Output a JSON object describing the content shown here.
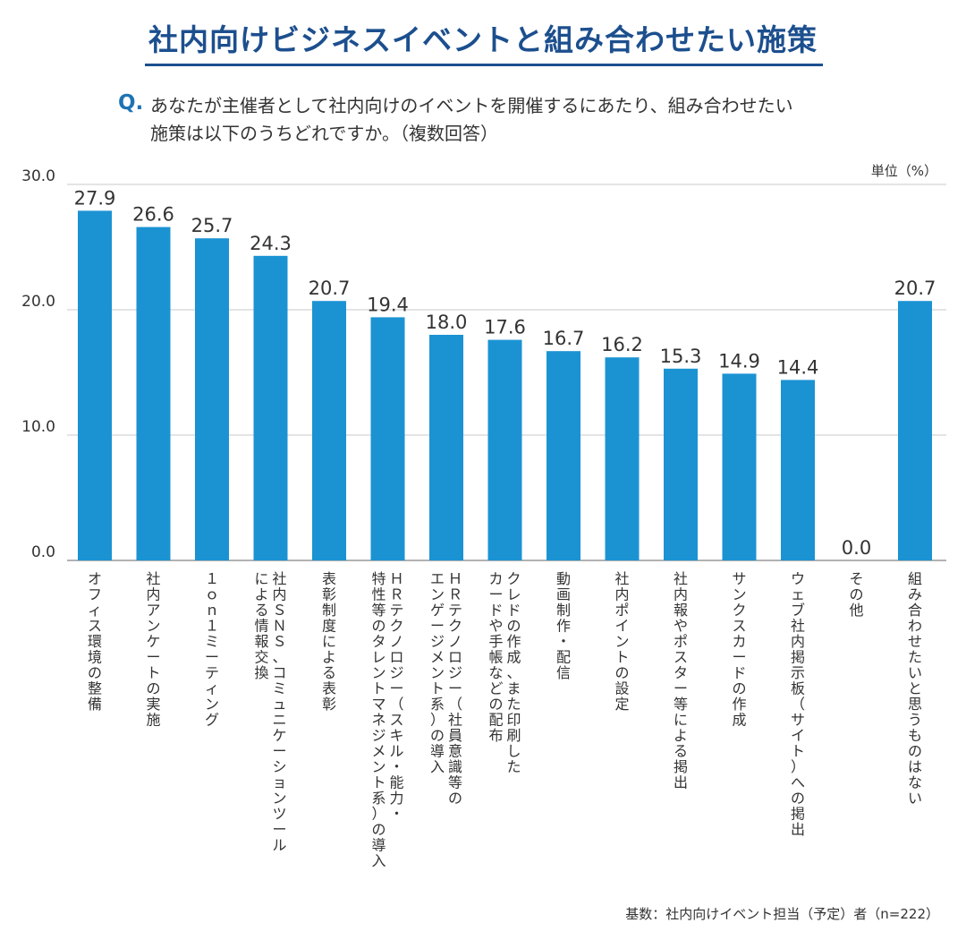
{
  "page_title": "社内向けビジネスイベントと組み合わせたい施策",
  "question": {
    "mark": "Q.",
    "line1": "あなたが主催者として社内向けのイベントを開催するにあたり、組み合わせたい",
    "line2": "施策は以下のうちどれですか。（複数回答）"
  },
  "unit_label": "単位（%）",
  "basis_note": "基数：社内向けイベント担当（予定）者（n=222）",
  "colors": {
    "bar": "#1b93d3",
    "title": "#1c4f8e",
    "accent": "#1e73b5",
    "grid": "#c8c8c8",
    "axis": "#999999"
  },
  "chart_data": {
    "type": "bar",
    "title": "社内向けビジネスイベントと組み合わせたい施策",
    "xlabel": "",
    "ylabel": "単位（%）",
    "ylim": [
      0,
      30
    ],
    "yticks": [
      "0.0",
      "10.0",
      "20.0",
      "30.0"
    ],
    "grid": true,
    "categories": [
      [
        "オフィス環境の整備"
      ],
      [
        "社内アンケートの実施"
      ],
      [
        "１ｏｎ１ミーティング"
      ],
      [
        "社内ＳＮＳ、コミュニケーションツール",
        "による情報交換"
      ],
      [
        "表彰制度による表彰"
      ],
      [
        "ＨＲテクノロジー（スキル・能力・",
        "特性等のタレントマネジメント系）の導入"
      ],
      [
        "ＨＲテクノロジー（社員意識等の",
        "エンゲージメント系）の導入"
      ],
      [
        "クレドの作成、また印刷した",
        "カードや手帳などの配布"
      ],
      [
        "動画制作・配信"
      ],
      [
        "社内ポイントの設定"
      ],
      [
        "社内報やポスター等による掲出"
      ],
      [
        "サンクスカードの作成"
      ],
      [
        "ウェブ社内掲示板（サイト）への掲出"
      ],
      [
        "その他"
      ],
      [
        "組み合わせたいと思うものはない"
      ]
    ],
    "values": [
      27.9,
      26.6,
      25.7,
      24.3,
      20.7,
      19.4,
      18.0,
      17.6,
      16.7,
      16.2,
      15.3,
      14.9,
      14.4,
      0.0,
      20.7
    ],
    "value_labels": [
      "27.9",
      "26.6",
      "25.7",
      "24.3",
      "20.7",
      "19.4",
      "18.0",
      "17.6",
      "16.7",
      "16.2",
      "15.3",
      "14.9",
      "14.4",
      "0.0",
      "20.7"
    ]
  }
}
